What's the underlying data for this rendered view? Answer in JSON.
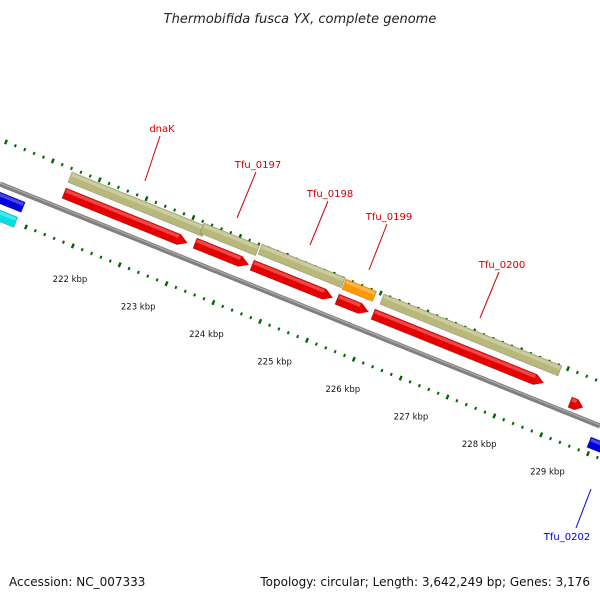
{
  "title": "Thermobifida fusca YX, complete genome",
  "footer": {
    "accession": "Accession: NC_007333",
    "summary": "Topology: circular; Length: 3,642,249 bp; Genes: 3,176"
  },
  "colors": {
    "backbone": "#808080",
    "cds": "#e60000",
    "gene": "#b8b87a",
    "orange_feature": "#ff9900",
    "blue_feature": "#0000dd",
    "cyan_feature": "#00e0e0",
    "tick": "#006600",
    "label_red": "#cc0000",
    "label_blue": "#0000cc"
  },
  "gene_labels": [
    {
      "name": "dnaK",
      "color": "label_red"
    },
    {
      "name": "Tfu_0197",
      "color": "label_red"
    },
    {
      "name": "Tfu_0198",
      "color": "label_red"
    },
    {
      "name": "Tfu_0199",
      "color": "label_red"
    },
    {
      "name": "Tfu_0200",
      "color": "label_red"
    },
    {
      "name": "Tfu_0202",
      "color": "label_blue"
    }
  ],
  "scale_labels": [
    "222 kbp",
    "223 kbp",
    "224 kbp",
    "225 kbp",
    "226 kbp",
    "227 kbp",
    "228 kbp",
    "229 kbp"
  ]
}
